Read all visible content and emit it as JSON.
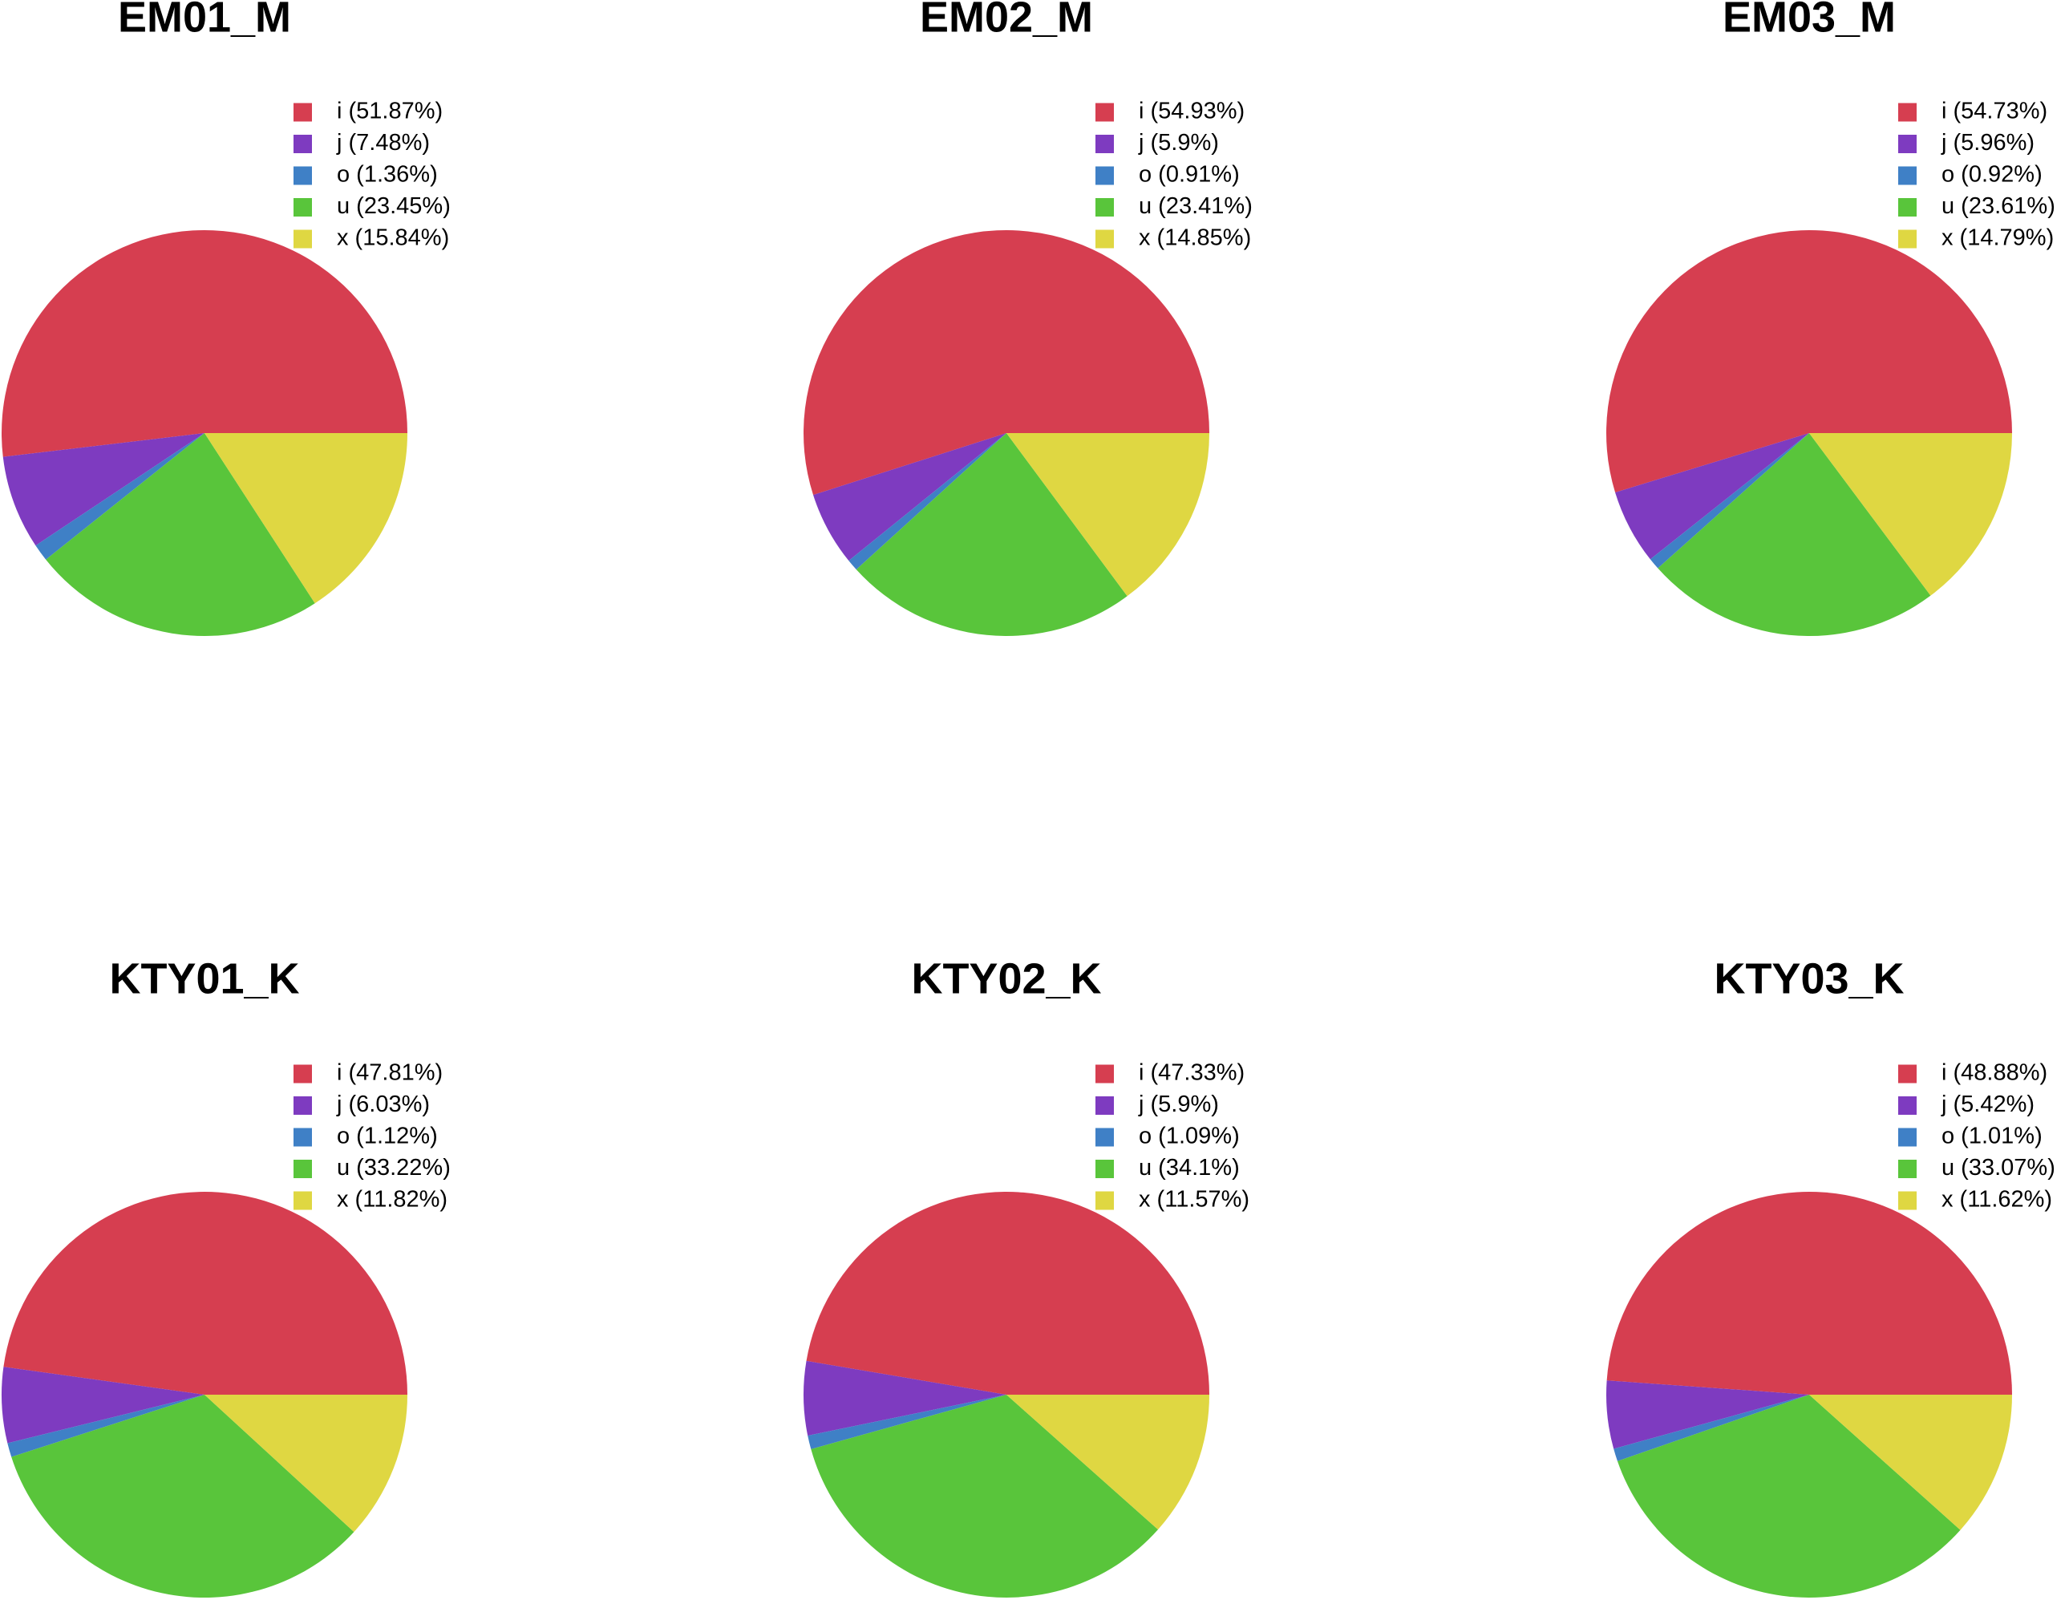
{
  "chart_data": [
    {
      "type": "pie",
      "title": "EM01_M",
      "categories": [
        "i (51.87%)",
        "j (7.48%)",
        "o (1.36%)",
        "u (23.45%)",
        "x (15.84%)"
      ],
      "values": [
        51.87,
        7.48,
        1.36,
        23.45,
        15.84
      ],
      "colors": [
        "#d63e50",
        "#7e3bc0",
        "#3f80c6",
        "#59c53b",
        "#dfd742"
      ]
    },
    {
      "type": "pie",
      "title": "EM02_M",
      "categories": [
        "i (54.93%)",
        "j (5.9%)",
        "o (0.91%)",
        "u (23.41%)",
        "x (14.85%)"
      ],
      "values": [
        54.93,
        5.9,
        0.91,
        23.41,
        14.85
      ],
      "colors": [
        "#d63e50",
        "#7e3bc0",
        "#3f80c6",
        "#59c53b",
        "#dfd742"
      ]
    },
    {
      "type": "pie",
      "title": "EM03_M",
      "categories": [
        "i (54.73%)",
        "j (5.96%)",
        "o (0.92%)",
        "u (23.61%)",
        "x (14.79%)"
      ],
      "values": [
        54.73,
        5.96,
        0.92,
        23.61,
        14.79
      ],
      "colors": [
        "#d63e50",
        "#7e3bc0",
        "#3f80c6",
        "#59c53b",
        "#dfd742"
      ]
    },
    {
      "type": "pie",
      "title": "KTY01_K",
      "categories": [
        "i (47.81%)",
        "j (6.03%)",
        "o (1.12%)",
        "u (33.22%)",
        "x (11.82%)"
      ],
      "values": [
        47.81,
        6.03,
        1.12,
        33.22,
        11.82
      ],
      "colors": [
        "#d63e50",
        "#7e3bc0",
        "#3f80c6",
        "#59c53b",
        "#dfd742"
      ]
    },
    {
      "type": "pie",
      "title": "KTY02_K",
      "categories": [
        "i (47.33%)",
        "j (5.9%)",
        "o (1.09%)",
        "u (34.1%)",
        "x (11.57%)"
      ],
      "values": [
        47.33,
        5.9,
        1.09,
        34.1,
        11.57
      ],
      "colors": [
        "#d63e50",
        "#7e3bc0",
        "#3f80c6",
        "#59c53b",
        "#dfd742"
      ]
    },
    {
      "type": "pie",
      "title": "KTY03_K",
      "categories": [
        "i (48.88%)",
        "j (5.42%)",
        "o (1.01%)",
        "u (33.07%)",
        "x (11.62%)"
      ],
      "values": [
        48.88,
        5.42,
        1.01,
        33.07,
        11.62
      ],
      "colors": [
        "#d63e50",
        "#7e3bc0",
        "#3f80c6",
        "#59c53b",
        "#dfd742"
      ]
    }
  ]
}
